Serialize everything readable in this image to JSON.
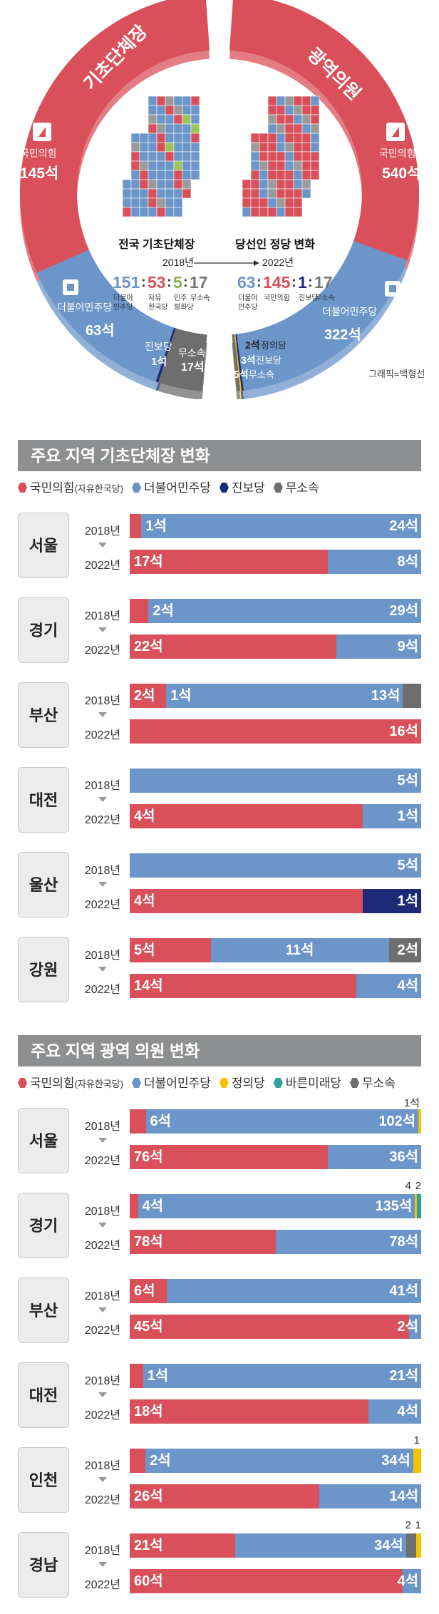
{
  "colors": {
    "ppp": "#d9505a",
    "dem": "#6c95c9",
    "jinbo": "#1d2a78",
    "justice": "#f2c500",
    "bareun": "#2e9f9c",
    "ind": "#6e6e6e"
  },
  "top": {
    "left_ring_title": "기초단체장",
    "right_ring_title": "광역의원",
    "left_ppp_label": "국민의힘",
    "left_ppp_value": "145석",
    "left_dem_label": "더불어민주당",
    "left_dem_value": "63석",
    "left_jinbo_label": "진보당",
    "left_jinbo_value": "1석",
    "left_ind_label": "무소속",
    "left_ind_value": "17석",
    "right_ppp_label": "국민의힘",
    "right_ppp_value": "540석",
    "right_dem_label": "더불어민주당",
    "right_dem_value": "322석",
    "right_justice_value": "2석",
    "right_justice_label": "정의당",
    "right_jinbo_value": "3석",
    "right_jinbo_label": "진보당",
    "right_ind_value": "5석",
    "right_ind_label": "무소속",
    "center_title_left": "전국 기초단체장",
    "center_title_right": "당선인 정당 변화",
    "year_2018": "2018년",
    "year_2022": "2022년",
    "n2018": [
      "151",
      "53",
      "5",
      "17"
    ],
    "n2018_labels": [
      "더불어\n민주당",
      "자유\n한국당",
      "민주\n평화당",
      "무소속"
    ],
    "n2022": [
      "63",
      "145",
      "1",
      "17"
    ],
    "n2022_labels": [
      "더불어\n민주당",
      "국민의힘",
      "진보당",
      "무소속"
    ],
    "credit": "그래픽=백형선"
  },
  "chart_data": [
    {
      "type": "bar",
      "title": "주요 지역 기초단체장 변화",
      "legend": [
        {
          "name": "국민의힘",
          "sub": "(자유한국당)",
          "color": "ppp"
        },
        {
          "name": "더불어민주당",
          "color": "dem"
        },
        {
          "name": "진보당",
          "color": "jinbo"
        },
        {
          "name": "무소속",
          "color": "ind"
        }
      ],
      "regions": [
        {
          "name": "서울",
          "y2018": [
            [
              "ppp",
              1,
              ""
            ],
            [
              "dem",
              24,
              "24석"
            ]
          ],
          "y2022": [
            [
              "ppp",
              17,
              "17석"
            ],
            [
              "dem",
              8,
              "8석"
            ]
          ],
          "a2018": [
            [
              "dem",
              "1석"
            ]
          ]
        },
        {
          "name": "경기",
          "y2018": [
            [
              "ppp",
              2,
              ""
            ],
            [
              "dem",
              29,
              "29석"
            ]
          ],
          "y2022": [
            [
              "ppp",
              22,
              "22석"
            ],
            [
              "dem",
              9,
              "9석"
            ]
          ],
          "a2018": [
            [
              "dem",
              "2석"
            ]
          ]
        },
        {
          "name": "부산",
          "y2018": [
            [
              "ppp",
              2,
              "2석"
            ],
            [
              "dem",
              13,
              "13석"
            ],
            [
              "ind",
              1,
              ""
            ]
          ],
          "y2022": [
            [
              "ppp",
              16,
              "16석"
            ]
          ],
          "a2018": [
            [
              "dem",
              "1석"
            ]
          ]
        },
        {
          "name": "대전",
          "y2018": [
            [
              "dem",
              5,
              "5석"
            ]
          ],
          "y2022": [
            [
              "ppp",
              4,
              "4석"
            ],
            [
              "dem",
              1,
              "1석"
            ]
          ]
        },
        {
          "name": "울산",
          "y2018": [
            [
              "dem",
              5,
              "5석"
            ]
          ],
          "y2022": [
            [
              "ppp",
              4,
              "4석"
            ],
            [
              "jinbo",
              1,
              "1석"
            ]
          ]
        },
        {
          "name": "강원",
          "y2018": [
            [
              "ppp",
              5,
              "5석"
            ],
            [
              "dem",
              11,
              "11석"
            ],
            [
              "ind",
              2,
              "2석"
            ]
          ],
          "y2022": [
            [
              "ppp",
              14,
              "14석"
            ],
            [
              "dem",
              4,
              "4석"
            ]
          ]
        }
      ]
    },
    {
      "type": "bar",
      "title": "주요 지역 광역 의원 변화",
      "legend": [
        {
          "name": "국민의힘",
          "sub": "(자유한국당)",
          "color": "ppp"
        },
        {
          "name": "더불어민주당",
          "color": "dem"
        },
        {
          "name": "정의당",
          "color": "justice"
        },
        {
          "name": "바른미래당",
          "color": "bareun"
        },
        {
          "name": "무소속",
          "color": "ind"
        }
      ],
      "regions": [
        {
          "name": "서울",
          "y2018": [
            [
              "ppp",
              6,
              ""
            ],
            [
              "dem",
              102,
              "102석"
            ],
            [
              "justice",
              1,
              ""
            ]
          ],
          "y2022": [
            [
              "ppp",
              76,
              "76석"
            ],
            [
              "dem",
              36,
              "36석"
            ]
          ],
          "a2018": [
            [
              "dem",
              "6석"
            ]
          ],
          "above": "1석"
        },
        {
          "name": "경기",
          "y2018": [
            [
              "ppp",
              4,
              ""
            ],
            [
              "dem",
              135,
              "135석"
            ],
            [
              "justice",
              1,
              ""
            ],
            [
              "bareun",
              2,
              ""
            ]
          ],
          "y2022": [
            [
              "ppp",
              78,
              "78석"
            ],
            [
              "dem",
              78,
              "78석"
            ]
          ],
          "a2018": [
            [
              "dem",
              "4석"
            ]
          ],
          "above": "4",
          "above2": "2"
        },
        {
          "name": "부산",
          "y2018": [
            [
              "ppp",
              6,
              "6석"
            ],
            [
              "dem",
              41,
              "41석"
            ]
          ],
          "y2022": [
            [
              "ppp",
              45,
              "45석"
            ],
            [
              "dem",
              2,
              "2석"
            ]
          ]
        },
        {
          "name": "대전",
          "y2018": [
            [
              "ppp",
              1,
              ""
            ],
            [
              "dem",
              21,
              "21석"
            ]
          ],
          "y2022": [
            [
              "ppp",
              18,
              "18석"
            ],
            [
              "dem",
              4,
              "4석"
            ]
          ],
          "a2018": [
            [
              "dem",
              "1석"
            ]
          ]
        },
        {
          "name": "인천",
          "y2018": [
            [
              "ppp",
              2,
              ""
            ],
            [
              "dem",
              34,
              "34석"
            ],
            [
              "justice",
              1,
              ""
            ]
          ],
          "y2022": [
            [
              "ppp",
              26,
              "26석"
            ],
            [
              "dem",
              14,
              "14석"
            ]
          ],
          "a2018": [
            [
              "dem",
              "2석"
            ]
          ],
          "above": "1"
        },
        {
          "name": "경남",
          "y2018": [
            [
              "ppp",
              21,
              "21석"
            ],
            [
              "dem",
              34,
              "34석"
            ],
            [
              "ind",
              2,
              ""
            ],
            [
              "justice",
              1,
              ""
            ]
          ],
          "y2022": [
            [
              "ppp",
              60,
              "60석"
            ],
            [
              "dem",
              4,
              "4석"
            ]
          ],
          "above": "2",
          "above2": "1"
        }
      ]
    }
  ]
}
